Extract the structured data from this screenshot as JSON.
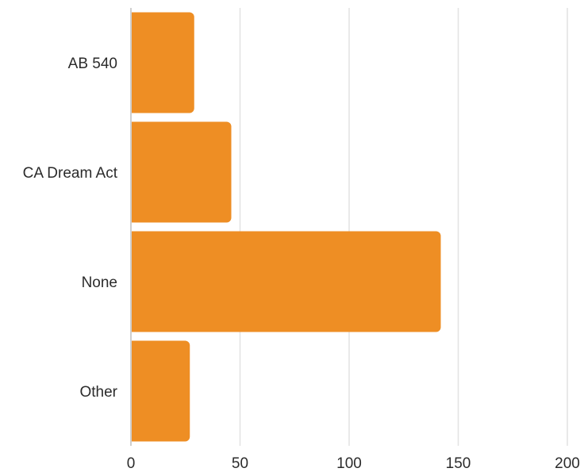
{
  "chart_data": {
    "type": "bar",
    "orientation": "horizontal",
    "title": "",
    "xlabel": "",
    "ylabel": "",
    "categories": [
      "AB 540",
      "CA Dream Act",
      "None",
      "Other"
    ],
    "values": [
      29,
      46,
      142,
      27
    ],
    "xlim": [
      0,
      200
    ],
    "x_ticks": [
      0,
      50,
      100,
      150,
      200
    ],
    "grid": "vertical",
    "legend": "none",
    "bar_color": "#ee8e24"
  }
}
